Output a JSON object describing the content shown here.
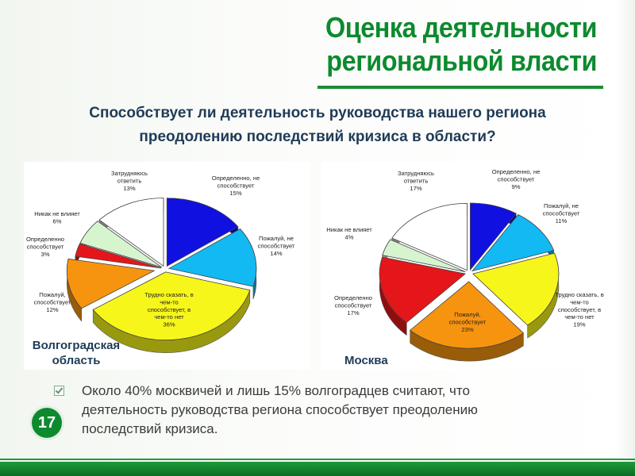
{
  "slide": {
    "title_line1": "Оценка деятельности",
    "title_line2": "региональной власти",
    "question_line1": "Способствует ли деятельность руководства нашего региона",
    "question_line2": "преодолению последствий кризиса в области?",
    "region_left_line1": "Волгоградская",
    "region_left_line2": "область",
    "region_right": "Москва",
    "note_text": "Около 40% москвичей и лишь 15% волгоградцев считают, что деятельность руководства региона способствует преодолению последствий кризиса.",
    "page_number": "17",
    "colors": {
      "accent": "#0d8a2e",
      "question": "#1f3b57"
    }
  },
  "chart_data": [
    {
      "type": "pie",
      "title": "",
      "region": "Волгоградская область",
      "slices": [
        {
          "label_lines": [
            "Определенно, не",
            "способствует",
            "15%"
          ],
          "value": 15,
          "color": "#1010e0"
        },
        {
          "label_lines": [
            "Пожалуй, не",
            "способствует",
            "14%"
          ],
          "value": 14,
          "color": "#12b9f2"
        },
        {
          "label_lines": [
            "Трудно сказать, в",
            "чем-то",
            "способствует, в",
            "чем-то нет",
            "36%"
          ],
          "value": 36,
          "color": "#f7f61a"
        },
        {
          "label_lines": [
            "Пожалуй,",
            "способствует",
            "12%"
          ],
          "value": 12,
          "color": "#f7940f"
        },
        {
          "label_lines": [
            "Определенно",
            "способствует",
            "3%"
          ],
          "value": 3,
          "color": "#e5161a"
        },
        {
          "label_lines": [
            "Никак не влияет",
            "6%"
          ],
          "value": 6,
          "color": "#d6f5cf"
        },
        {
          "label_lines": [
            "Затрудняюсь",
            "ответить",
            "13%"
          ],
          "value": 13,
          "color": "#ffffff"
        }
      ]
    },
    {
      "type": "pie",
      "title": "",
      "region": "Москва",
      "slices": [
        {
          "label_lines": [
            "Определенно, не",
            "способствует",
            "9%"
          ],
          "value": 9,
          "color": "#1010e0"
        },
        {
          "label_lines": [
            "Пожалуй, не",
            "способствует",
            "11%"
          ],
          "value": 11,
          "color": "#12b9f2"
        },
        {
          "label_lines": [
            "Трудно сказать, в",
            "чем-то",
            "способствует, в",
            "чем-то нет",
            "19%"
          ],
          "value": 19,
          "color": "#f7f61a"
        },
        {
          "label_lines": [
            "Пожалуй,",
            "способствует",
            "23%"
          ],
          "value": 23,
          "color": "#f7940f"
        },
        {
          "label_lines": [
            "Определенно",
            "способствует",
            "17%"
          ],
          "value": 17,
          "color": "#e5161a"
        },
        {
          "label_lines": [
            "Никак не влияет",
            "4%"
          ],
          "value": 4,
          "color": "#d6f5cf"
        },
        {
          "label_lines": [
            "Затрудняюсь",
            "ответить",
            "17%"
          ],
          "value": 17,
          "color": "#ffffff"
        }
      ]
    }
  ]
}
